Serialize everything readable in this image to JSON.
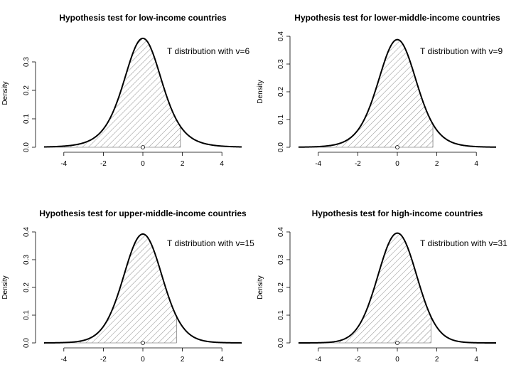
{
  "chart_data": [
    {
      "type": "line",
      "title": "Hypothesis test for low-income countries",
      "ylabel": "Density",
      "xlabel": "",
      "annotation": "T distribution with v=6",
      "df": 6,
      "x_range": [
        -5,
        5
      ],
      "xlim": [
        -5,
        5
      ],
      "ylim": [
        0,
        0.38
      ],
      "x_ticks": [
        -4,
        -2,
        0,
        2,
        4
      ],
      "y_ticks": [
        0.0,
        0.1,
        0.2,
        0.3
      ],
      "y_tick_labels": [
        "0.0",
        "0.1",
        "0.2",
        "0.3"
      ],
      "shaded_region": [
        -5,
        1.9
      ],
      "marker_point": [
        0,
        0
      ]
    },
    {
      "type": "line",
      "title": "Hypothesis test for lower-middle-income countries",
      "ylabel": "Density",
      "xlabel": "",
      "annotation": "T distribution with v=9",
      "df": 9,
      "x_range": [
        -5,
        5
      ],
      "xlim": [
        -5,
        5
      ],
      "ylim": [
        0,
        0.4
      ],
      "x_ticks": [
        -4,
        -2,
        0,
        2,
        4
      ],
      "y_ticks": [
        0.0,
        0.1,
        0.2,
        0.3,
        0.4
      ],
      "y_tick_labels": [
        "0.0",
        "0.1",
        "0.2",
        "0.3",
        "0.4"
      ],
      "shaded_region": [
        -5,
        1.8
      ],
      "marker_point": [
        0,
        0
      ]
    },
    {
      "type": "line",
      "title": "Hypothesis test for upper-middle-income countries",
      "ylabel": "Density",
      "xlabel": "",
      "annotation": "T distribution with v=15",
      "df": 15,
      "x_range": [
        -5,
        5
      ],
      "xlim": [
        -5,
        5
      ],
      "ylim": [
        0,
        0.4
      ],
      "x_ticks": [
        -4,
        -2,
        0,
        2,
        4
      ],
      "y_ticks": [
        0.0,
        0.1,
        0.2,
        0.3,
        0.4
      ],
      "y_tick_labels": [
        "0.0",
        "0.1",
        "0.2",
        "0.3",
        "0.4"
      ],
      "shaded_region": [
        -5,
        1.7
      ],
      "marker_point": [
        0,
        0
      ]
    },
    {
      "type": "line",
      "title": "Hypothesis test for high-income countries",
      "ylabel": "Density",
      "xlabel": "",
      "annotation": "T distribution with v=31",
      "df": 31,
      "x_range": [
        -5,
        5
      ],
      "xlim": [
        -5,
        5
      ],
      "ylim": [
        0,
        0.4
      ],
      "x_ticks": [
        -4,
        -2,
        0,
        2,
        4
      ],
      "y_ticks": [
        0.0,
        0.1,
        0.2,
        0.3,
        0.4
      ],
      "y_tick_labels": [
        "0.0",
        "0.1",
        "0.2",
        "0.3",
        "0.4"
      ],
      "shaded_region": [
        -5,
        1.7
      ],
      "marker_point": [
        0,
        0
      ]
    }
  ]
}
